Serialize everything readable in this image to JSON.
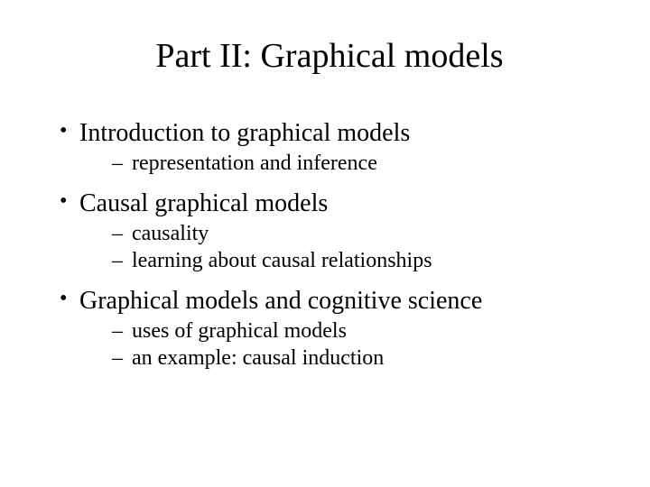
{
  "title": "Part II: Graphical models",
  "bullets": [
    {
      "text": "Introduction to graphical models",
      "subs": [
        "representation and inference"
      ]
    },
    {
      "text": "Causal graphical models",
      "subs": [
        "causality",
        "learning about causal relationships"
      ]
    },
    {
      "text": "Graphical models and cognitive science",
      "subs": [
        "uses of graphical models",
        "an example: causal induction"
      ]
    }
  ],
  "colors": {
    "background": "#ffffff",
    "text": "#000000"
  },
  "typography": {
    "family": "Times New Roman",
    "title_fontsize": 38,
    "bullet_fontsize": 28,
    "sub_fontsize": 24
  }
}
